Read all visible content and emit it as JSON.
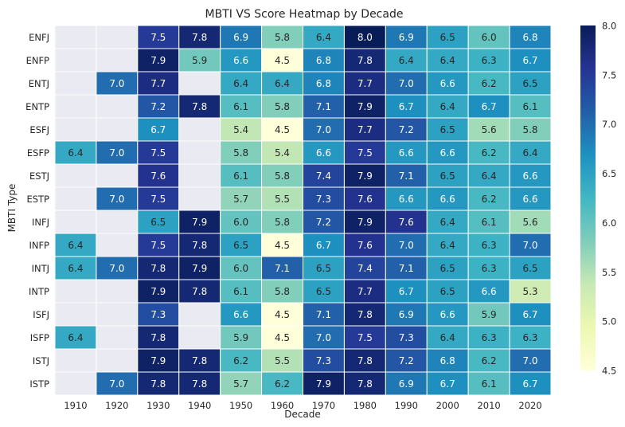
{
  "chart_data": {
    "type": "heatmap",
    "title": "MBTI VS Score Heatmap by Decade",
    "xlabel": "Decade",
    "ylabel": "MBTI Type",
    "x_categories": [
      "1910",
      "1920",
      "1930",
      "1940",
      "1950",
      "1960",
      "1970",
      "1980",
      "1990",
      "2000",
      "2010",
      "2020"
    ],
    "y_categories": [
      "ENFJ",
      "ENFP",
      "ENTJ",
      "ENTP",
      "ESFJ",
      "ESFP",
      "ESTJ",
      "ESTP",
      "INFJ",
      "INFP",
      "INTJ",
      "INTP",
      "ISFJ",
      "ISFP",
      "ISTJ",
      "ISTP"
    ],
    "values": [
      [
        null,
        null,
        7.5,
        7.8,
        6.9,
        5.8,
        6.4,
        8.0,
        6.9,
        6.5,
        6.0,
        6.8
      ],
      [
        null,
        null,
        7.9,
        5.9,
        6.6,
        4.5,
        6.8,
        7.8,
        6.4,
        6.4,
        6.3,
        6.7
      ],
      [
        null,
        7.0,
        7.7,
        null,
        6.4,
        6.4,
        6.8,
        7.7,
        7.0,
        6.6,
        6.2,
        6.5
      ],
      [
        null,
        null,
        7.2,
        7.8,
        6.1,
        5.8,
        7.1,
        7.9,
        6.7,
        6.4,
        6.7,
        6.1
      ],
      [
        null,
        null,
        6.7,
        null,
        5.4,
        4.5,
        7.0,
        7.7,
        7.2,
        6.5,
        5.6,
        5.8
      ],
      [
        6.4,
        7.0,
        7.5,
        null,
        5.8,
        5.4,
        6.6,
        7.5,
        6.6,
        6.6,
        6.2,
        6.4
      ],
      [
        null,
        null,
        7.6,
        null,
        6.1,
        5.8,
        7.4,
        7.9,
        7.1,
        6.5,
        6.4,
        6.6
      ],
      [
        null,
        7.0,
        7.5,
        null,
        5.7,
        5.5,
        7.3,
        7.6,
        6.6,
        6.6,
        6.2,
        6.6
      ],
      [
        null,
        null,
        6.5,
        7.9,
        6.0,
        5.8,
        7.2,
        7.9,
        7.6,
        6.4,
        6.1,
        5.6
      ],
      [
        6.4,
        null,
        7.5,
        7.8,
        6.5,
        4.5,
        6.7,
        7.6,
        7.0,
        6.4,
        6.3,
        7.0
      ],
      [
        6.4,
        7.0,
        7.8,
        7.9,
        6.0,
        7.1,
        6.5,
        7.4,
        7.1,
        6.5,
        6.3,
        6.5
      ],
      [
        null,
        null,
        7.9,
        7.8,
        6.1,
        5.8,
        6.5,
        7.7,
        6.7,
        6.5,
        6.6,
        5.3
      ],
      [
        null,
        null,
        7.3,
        null,
        6.6,
        4.5,
        7.1,
        7.8,
        6.9,
        6.6,
        5.9,
        6.7
      ],
      [
        6.4,
        null,
        7.8,
        null,
        5.9,
        4.5,
        7.0,
        7.5,
        7.3,
        6.4,
        6.3,
        6.3
      ],
      [
        null,
        null,
        7.9,
        7.8,
        6.2,
        5.5,
        7.3,
        7.8,
        7.2,
        6.8,
        6.2,
        7.0
      ],
      [
        null,
        7.0,
        7.8,
        7.8,
        5.7,
        6.2,
        7.9,
        7.8,
        6.9,
        6.7,
        6.1,
        6.7
      ]
    ],
    "colorbar": {
      "min": 4.5,
      "max": 8.0,
      "ticks": [
        "4.5",
        "5.0",
        "5.5",
        "6.0",
        "6.5",
        "7.0",
        "7.5",
        "8.0"
      ]
    },
    "colormap": "YlGnBu",
    "colors": {
      "missing": "#eaeaf2",
      "grid": "#ffffff"
    }
  }
}
